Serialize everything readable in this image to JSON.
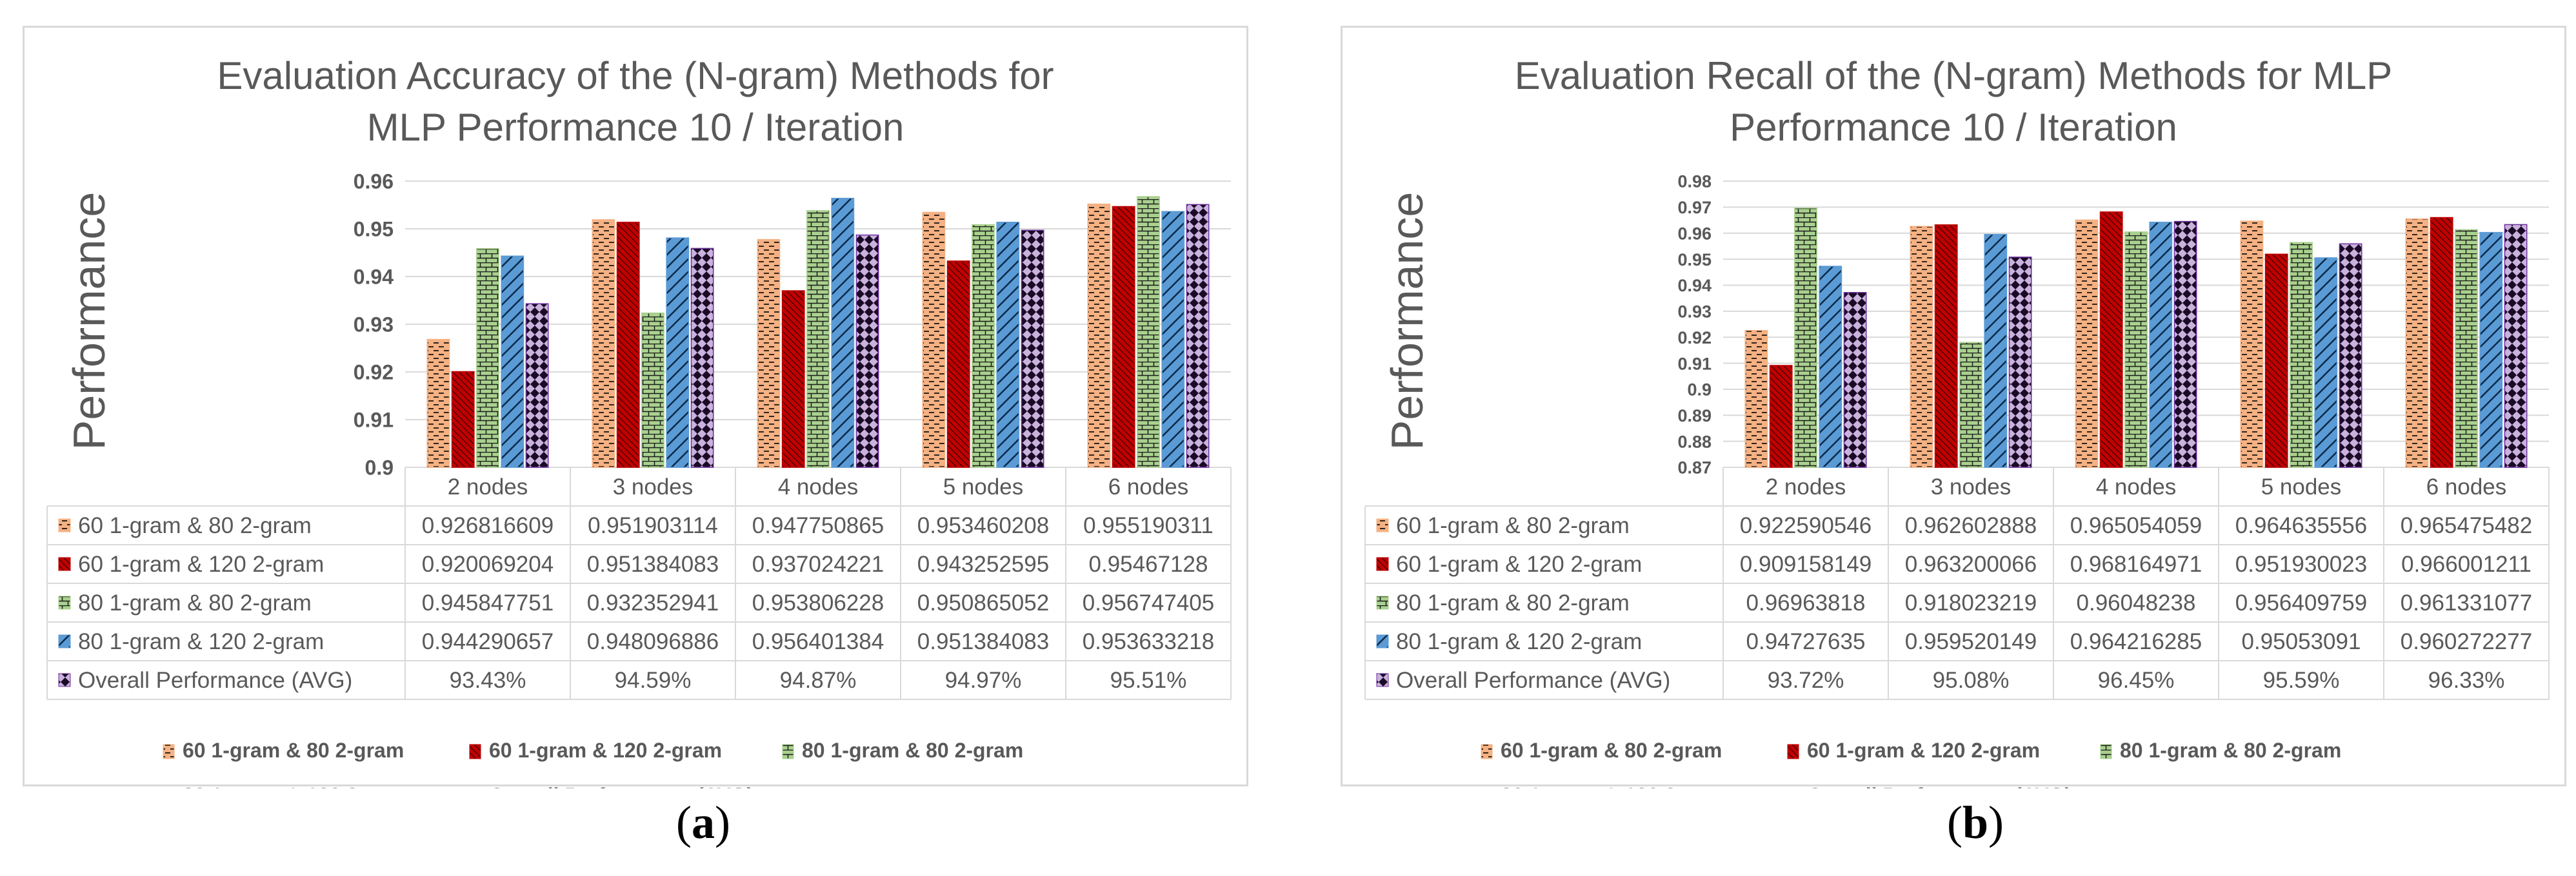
{
  "chart_data": [
    {
      "type": "bar",
      "title_line1": "Evaluation Accuracy of the (N-gram) Methods for",
      "title_line2": "MLP Performance  10 / Iteration",
      "ylabel": "Performance",
      "caption": "a",
      "ylim": [
        0.9,
        0.96
      ],
      "yticks": [
        0.9,
        0.91,
        0.92,
        0.93,
        0.94,
        0.95,
        0.96
      ],
      "ytick_labels": [
        "0.9",
        "0.91",
        "0.92",
        "0.93",
        "0.94",
        "0.95",
        "0.96"
      ],
      "categories": [
        "2 nodes",
        "3 nodes",
        "4 nodes",
        "5 nodes",
        "6 nodes"
      ],
      "series": [
        {
          "name": "60 1-gram & 80 2-gram",
          "values": [
            0.926816609,
            0.951903114,
            0.947750865,
            0.953460208,
            0.955190311
          ],
          "table": [
            "0.926816609",
            "0.951903114",
            "0.947750865",
            "0.953460208",
            "0.955190311"
          ]
        },
        {
          "name": "60 1-gram & 120 2-gram",
          "values": [
            0.920069204,
            0.951384083,
            0.937024221,
            0.943252595,
            0.95467128
          ],
          "table": [
            "0.920069204",
            "0.951384083",
            "0.937024221",
            "0.943252595",
            "0.95467128"
          ]
        },
        {
          "name": "80 1-gram & 80 2-gram",
          "values": [
            0.945847751,
            0.932352941,
            0.953806228,
            0.950865052,
            0.956747405
          ],
          "table": [
            "0.945847751",
            "0.932352941",
            "0.953806228",
            "0.950865052",
            "0.956747405"
          ]
        },
        {
          "name": "80 1-gram & 120 2-gram",
          "values": [
            0.944290657,
            0.948096886,
            0.956401384,
            0.951384083,
            0.953633218
          ],
          "table": [
            "0.944290657",
            "0.948096886",
            "0.956401384",
            "0.951384083",
            "0.953633218"
          ]
        },
        {
          "name": "Overall Performance (AVG)",
          "values": [
            0.9343,
            0.9459,
            0.9487,
            0.9497,
            0.9551
          ],
          "table": [
            "93.43%",
            "94.59%",
            "94.87%",
            "94.97%",
            "95.51%"
          ]
        }
      ]
    },
    {
      "type": "bar",
      "title_line1": "Evaluation Recall of the (N-gram) Methods for MLP",
      "title_line2": "Performance  10 / Iteration",
      "ylabel": "Performance",
      "caption": "b",
      "ylim": [
        0.87,
        0.98
      ],
      "yticks": [
        0.87,
        0.88,
        0.89,
        0.9,
        0.91,
        0.92,
        0.93,
        0.94,
        0.95,
        0.96,
        0.97,
        0.98
      ],
      "ytick_labels": [
        "0.87",
        "0.88",
        "0.89",
        "0.9",
        "0.91",
        "0.92",
        "0.93",
        "0.94",
        "0.95",
        "0.96",
        "0.97",
        "0.98"
      ],
      "categories": [
        "2 nodes",
        "3 nodes",
        "4 nodes",
        "5 nodes",
        "6 nodes"
      ],
      "series": [
        {
          "name": "60 1-gram & 80 2-gram",
          "values": [
            0.922590546,
            0.962602888,
            0.965054059,
            0.964635556,
            0.965475482
          ],
          "table": [
            "0.922590546",
            "0.962602888",
            "0.965054059",
            "0.964635556",
            "0.965475482"
          ]
        },
        {
          "name": "60 1-gram & 120 2-gram",
          "values": [
            0.909158149,
            0.963200066,
            0.968164971,
            0.951930023,
            0.966001211
          ],
          "table": [
            "0.909158149",
            "0.963200066",
            "0.968164971",
            "0.951930023",
            "0.966001211"
          ]
        },
        {
          "name": "80 1-gram & 80 2-gram",
          "values": [
            0.96963818,
            0.918023219,
            0.96048238,
            0.956409759,
            0.961331077
          ],
          "table": [
            "0.96963818",
            "0.918023219",
            "0.96048238",
            "0.956409759",
            "0.961331077"
          ]
        },
        {
          "name": "80 1-gram & 120 2-gram",
          "values": [
            0.94727635,
            0.959520149,
            0.964216285,
            0.95053091,
            0.960272277
          ],
          "table": [
            "0.94727635",
            "0.959520149",
            "0.964216285",
            "0.95053091",
            "0.960272277"
          ]
        },
        {
          "name": "Overall Performance (AVG)",
          "values": [
            0.9372,
            0.9508,
            0.9645,
            0.9559,
            0.9633
          ],
          "table": [
            "93.72%",
            "95.08%",
            "96.45%",
            "95.59%",
            "96.33%"
          ]
        }
      ]
    }
  ],
  "style": {
    "series_colors": [
      "#f4b183",
      "#c00000",
      "#a9d18e",
      "#5b9bd5",
      "#7030a0"
    ],
    "series_patterns": [
      "dash",
      "diag-dense",
      "brick",
      "diag-wide",
      "diamond"
    ],
    "grid_color": "#d9d9d9",
    "text_color": "#595959"
  }
}
